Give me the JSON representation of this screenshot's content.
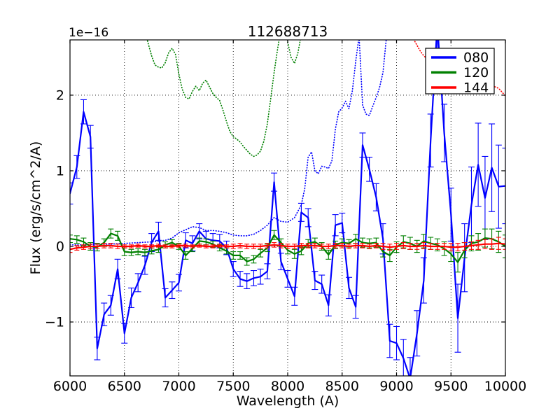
{
  "chart_data": {
    "type": "line",
    "title": "112688713",
    "offset_text": "1e−16",
    "xlabel": "Wavelength (A)",
    "ylabel": "Flux (erg/s/cm^2/A)",
    "y_scale_factor": "1e-16",
    "xlim": [
      6000,
      10000
    ],
    "ylim": [
      -1.713,
      2.731
    ],
    "xticks": [
      6000,
      6500,
      7000,
      7500,
      8000,
      8500,
      9000,
      9500,
      10000
    ],
    "yticks": [
      -1,
      0,
      1,
      2
    ],
    "grid": true,
    "background": "#ffffff",
    "legend": {
      "position": "upper right",
      "entries": [
        {
          "label": "080",
          "color": "#0000ff"
        },
        {
          "label": "120",
          "color": "#008000"
        },
        {
          "label": "144",
          "color": "#ff0000"
        }
      ]
    },
    "series": [
      {
        "name": "080",
        "color": "#0000ff",
        "style": "solid",
        "has_errorbars": true,
        "x": [
          6000,
          6063,
          6125,
          6188,
          6250,
          6313,
          6375,
          6438,
          6500,
          6563,
          6625,
          6688,
          6750,
          6813,
          6875,
          6938,
          7000,
          7063,
          7125,
          7188,
          7250,
          7313,
          7375,
          7438,
          7500,
          7563,
          7625,
          7688,
          7750,
          7813,
          7875,
          7938,
          8000,
          8063,
          8125,
          8188,
          8250,
          8313,
          8375,
          8438,
          8500,
          8563,
          8625,
          8688,
          8750,
          8813,
          8875,
          8938,
          9000,
          9063,
          9125,
          9188,
          9250,
          9313,
          9375,
          9438,
          9500,
          9563,
          9625,
          9688,
          9750,
          9813,
          9875,
          9938,
          10000
        ],
        "y": [
          0.7,
          1.05,
          1.78,
          1.45,
          -1.35,
          -0.9,
          -0.78,
          -0.3,
          -1.15,
          -0.68,
          -0.48,
          -0.25,
          0.05,
          0.2,
          -0.68,
          -0.58,
          -0.48,
          0.08,
          0.04,
          0.2,
          0.1,
          0.08,
          0.07,
          -0.02,
          -0.3,
          -0.43,
          -0.46,
          -0.42,
          -0.4,
          -0.33,
          0.85,
          -0.2,
          -0.43,
          -0.66,
          0.45,
          0.38,
          -0.45,
          -0.5,
          -0.78,
          0.28,
          0.31,
          -0.55,
          -0.8,
          1.34,
          1.02,
          0.65,
          0.1,
          -1.25,
          -1.28,
          -1.48,
          -1.75,
          -1.15,
          -0.45,
          1.4,
          2.95,
          1.5,
          0.42,
          -0.95,
          -0.15,
          0.55,
          1.08,
          0.64,
          1.04,
          0.79,
          0.8
        ],
        "yerr": [
          0.14,
          0.15,
          0.16,
          0.15,
          0.15,
          0.15,
          0.13,
          0.13,
          0.13,
          0.13,
          0.12,
          0.12,
          0.12,
          0.12,
          0.12,
          0.11,
          0.11,
          0.1,
          0.1,
          0.1,
          0.1,
          0.09,
          0.09,
          0.09,
          0.1,
          0.1,
          0.1,
          0.1,
          0.1,
          0.1,
          0.12,
          0.11,
          0.11,
          0.12,
          0.12,
          0.12,
          0.12,
          0.12,
          0.14,
          0.14,
          0.13,
          0.14,
          0.15,
          0.16,
          0.16,
          0.18,
          0.2,
          0.22,
          0.22,
          0.25,
          0.28,
          0.3,
          0.3,
          0.35,
          0.4,
          0.38,
          0.35,
          0.45,
          0.45,
          0.5,
          0.55,
          0.55,
          0.58,
          0.55,
          0.5
        ]
      },
      {
        "name": "080-dotted",
        "color": "#0000ff",
        "style": "dotted",
        "has_errorbars": false,
        "x": [
          6000,
          6125,
          6250,
          6375,
          6500,
          6625,
          6750,
          6875,
          6938,
          7000,
          7063,
          7125,
          7188,
          7250,
          7313,
          7375,
          7438,
          7500,
          7563,
          7625,
          7688,
          7750,
          7813,
          7875,
          7938,
          8000,
          8063,
          8125,
          8156,
          8188,
          8219,
          8250,
          8281,
          8313,
          8344,
          8375,
          8406,
          8438,
          8469,
          8500,
          8531,
          8563,
          8594,
          8625,
          8656,
          8688,
          8719,
          8750,
          8781,
          8813,
          8844,
          8875,
          8906,
          8938
        ],
        "y": [
          0.02,
          0.02,
          0.03,
          0.03,
          0.04,
          0.05,
          0.06,
          0.08,
          0.11,
          0.18,
          0.22,
          0.26,
          0.25,
          0.21,
          0.21,
          0.2,
          0.18,
          0.15,
          0.14,
          0.14,
          0.16,
          0.21,
          0.28,
          0.38,
          0.33,
          0.32,
          0.38,
          0.55,
          0.76,
          1.18,
          1.25,
          1.0,
          0.96,
          1.06,
          1.05,
          1.03,
          1.13,
          1.55,
          1.78,
          1.83,
          1.92,
          1.82,
          2.06,
          2.45,
          2.78,
          1.87,
          1.75,
          1.73,
          1.85,
          1.97,
          2.1,
          2.3,
          2.75,
          3.2
        ]
      },
      {
        "name": "120",
        "color": "#008000",
        "style": "solid",
        "has_errorbars": true,
        "x": [
          6000,
          6063,
          6125,
          6188,
          6250,
          6313,
          6375,
          6438,
          6500,
          6563,
          6625,
          6688,
          6750,
          6813,
          6875,
          6938,
          7000,
          7063,
          7125,
          7188,
          7250,
          7313,
          7375,
          7438,
          7500,
          7563,
          7625,
          7688,
          7750,
          7813,
          7875,
          7938,
          8000,
          8063,
          8125,
          8188,
          8250,
          8313,
          8375,
          8438,
          8500,
          8563,
          8625,
          8688,
          8750,
          8813,
          8875,
          8938,
          9000,
          9063,
          9125,
          9188,
          9250,
          9313,
          9375,
          9438,
          9500,
          9563,
          9625,
          9688,
          9750,
          9813,
          9875,
          9938,
          10000
        ],
        "y": [
          0.1,
          0.09,
          0.06,
          0.0,
          -0.01,
          0.05,
          0.17,
          0.14,
          -0.07,
          -0.08,
          -0.07,
          -0.08,
          -0.06,
          -0.04,
          0.02,
          0.05,
          0.0,
          -0.12,
          -0.03,
          0.07,
          0.06,
          0.03,
          -0.02,
          -0.06,
          -0.12,
          -0.12,
          -0.2,
          -0.17,
          -0.09,
          -0.02,
          0.15,
          0.05,
          -0.05,
          -0.1,
          -0.06,
          0.04,
          0.06,
          0.0,
          -0.11,
          0.02,
          0.05,
          0.04,
          0.1,
          0.05,
          0.04,
          0.05,
          -0.07,
          -0.12,
          -0.01,
          0.06,
          0.04,
          0.0,
          0.07,
          0.04,
          0.02,
          -0.03,
          -0.1,
          -0.21,
          -0.05,
          0.04,
          0.06,
          0.11,
          0.1,
          0.06,
          0.0
        ],
        "yerr": [
          0.05,
          0.05,
          0.05,
          0.05,
          0.05,
          0.05,
          0.06,
          0.06,
          0.05,
          0.04,
          0.04,
          0.04,
          0.04,
          0.04,
          0.04,
          0.04,
          0.04,
          0.05,
          0.04,
          0.04,
          0.04,
          0.04,
          0.04,
          0.04,
          0.05,
          0.05,
          0.05,
          0.05,
          0.05,
          0.05,
          0.06,
          0.05,
          0.05,
          0.06,
          0.05,
          0.05,
          0.05,
          0.05,
          0.06,
          0.05,
          0.05,
          0.05,
          0.06,
          0.06,
          0.06,
          0.06,
          0.07,
          0.08,
          0.07,
          0.08,
          0.08,
          0.08,
          0.09,
          0.08,
          0.08,
          0.09,
          0.1,
          0.13,
          0.1,
          0.1,
          0.11,
          0.12,
          0.13,
          0.14,
          0.15
        ]
      },
      {
        "name": "120-dotted",
        "color": "#008000",
        "style": "dotted",
        "has_errorbars": false,
        "x": [
          6688,
          6719,
          6750,
          6781,
          6813,
          6844,
          6875,
          6906,
          6938,
          6969,
          7000,
          7031,
          7063,
          7094,
          7125,
          7156,
          7188,
          7219,
          7250,
          7281,
          7313,
          7344,
          7375,
          7406,
          7438,
          7469,
          7500,
          7531,
          7563,
          7594,
          7625,
          7656,
          7688,
          7719,
          7750,
          7781,
          7813,
          7844,
          7875,
          7906,
          7938,
          7969,
          8000,
          8031,
          8063,
          8094,
          8125
        ],
        "y": [
          2.85,
          2.68,
          2.52,
          2.4,
          2.37,
          2.36,
          2.43,
          2.56,
          2.62,
          2.54,
          2.28,
          2.08,
          1.97,
          1.95,
          2.05,
          2.12,
          2.06,
          2.16,
          2.2,
          2.11,
          2.02,
          1.97,
          1.93,
          1.8,
          1.65,
          1.52,
          1.45,
          1.42,
          1.38,
          1.32,
          1.27,
          1.22,
          1.19,
          1.21,
          1.26,
          1.39,
          1.62,
          1.95,
          2.3,
          2.6,
          2.88,
          3.0,
          2.7,
          2.5,
          2.42,
          2.56,
          2.8
        ]
      },
      {
        "name": "144",
        "color": "#ff0000",
        "style": "solid",
        "has_errorbars": true,
        "x": [
          6000,
          6063,
          6125,
          6188,
          6250,
          6313,
          6375,
          6438,
          6500,
          6563,
          6625,
          6688,
          6750,
          6813,
          6875,
          6938,
          7000,
          7063,
          7125,
          7188,
          7250,
          7313,
          7375,
          7438,
          7500,
          7563,
          7625,
          7688,
          7750,
          7813,
          7875,
          7938,
          8000,
          8063,
          8125,
          8188,
          8250,
          8313,
          8375,
          8438,
          8500,
          8563,
          8625,
          8688,
          8750,
          8813,
          8875,
          8938,
          9000,
          9063,
          9125,
          9188,
          9250,
          9313,
          9375,
          9438,
          9500,
          9563,
          9625,
          9688,
          9750,
          9813,
          9875,
          9938,
          10000
        ],
        "y": [
          -0.04,
          -0.02,
          -0.01,
          0.0,
          0.0,
          0.01,
          0.01,
          0.0,
          0.0,
          0.0,
          0.01,
          0.0,
          0.0,
          0.01,
          0.0,
          0.0,
          0.01,
          0.01,
          0.0,
          0.01,
          0.0,
          0.0,
          0.01,
          0.0,
          0.0,
          0.01,
          0.0,
          0.0,
          0.0,
          0.01,
          0.02,
          0.01,
          0.0,
          0.0,
          0.01,
          0.01,
          0.01,
          0.0,
          0.0,
          0.01,
          0.01,
          0.0,
          0.01,
          0.01,
          0.0,
          0.01,
          0.0,
          -0.01,
          0.0,
          0.01,
          0.0,
          0.0,
          0.01,
          0.0,
          0.0,
          0.0,
          -0.01,
          -0.01,
          0.0,
          0.01,
          0.02,
          0.03,
          0.03,
          0.04,
          0.03
        ],
        "yerr": [
          0.04,
          0.03,
          0.03,
          0.03,
          0.03,
          0.03,
          0.03,
          0.03,
          0.02,
          0.02,
          0.02,
          0.02,
          0.02,
          0.02,
          0.02,
          0.02,
          0.02,
          0.02,
          0.02,
          0.02,
          0.02,
          0.02,
          0.02,
          0.02,
          0.03,
          0.03,
          0.03,
          0.03,
          0.03,
          0.03,
          0.03,
          0.03,
          0.03,
          0.03,
          0.03,
          0.03,
          0.03,
          0.03,
          0.03,
          0.03,
          0.03,
          0.03,
          0.03,
          0.03,
          0.03,
          0.03,
          0.04,
          0.04,
          0.04,
          0.04,
          0.04,
          0.04,
          0.04,
          0.04,
          0.04,
          0.04,
          0.05,
          0.05,
          0.05,
          0.05,
          0.06,
          0.06,
          0.07,
          0.08,
          0.07
        ]
      },
      {
        "name": "144-dotted",
        "color": "#ff0000",
        "style": "dotted",
        "has_errorbars": false,
        "x": [
          9156,
          9188,
          9219,
          9250,
          9281,
          9313,
          9375,
          9438,
          9500,
          9563,
          9625,
          9688,
          9750,
          9813,
          9875,
          9906,
          9938,
          9969,
          10000
        ],
        "y": [
          2.74,
          2.66,
          2.58,
          2.52,
          2.48,
          2.44,
          2.38,
          2.32,
          2.28,
          2.24,
          2.21,
          2.18,
          2.16,
          2.14,
          2.12,
          2.11,
          2.09,
          2.04,
          1.99
        ]
      }
    ]
  }
}
